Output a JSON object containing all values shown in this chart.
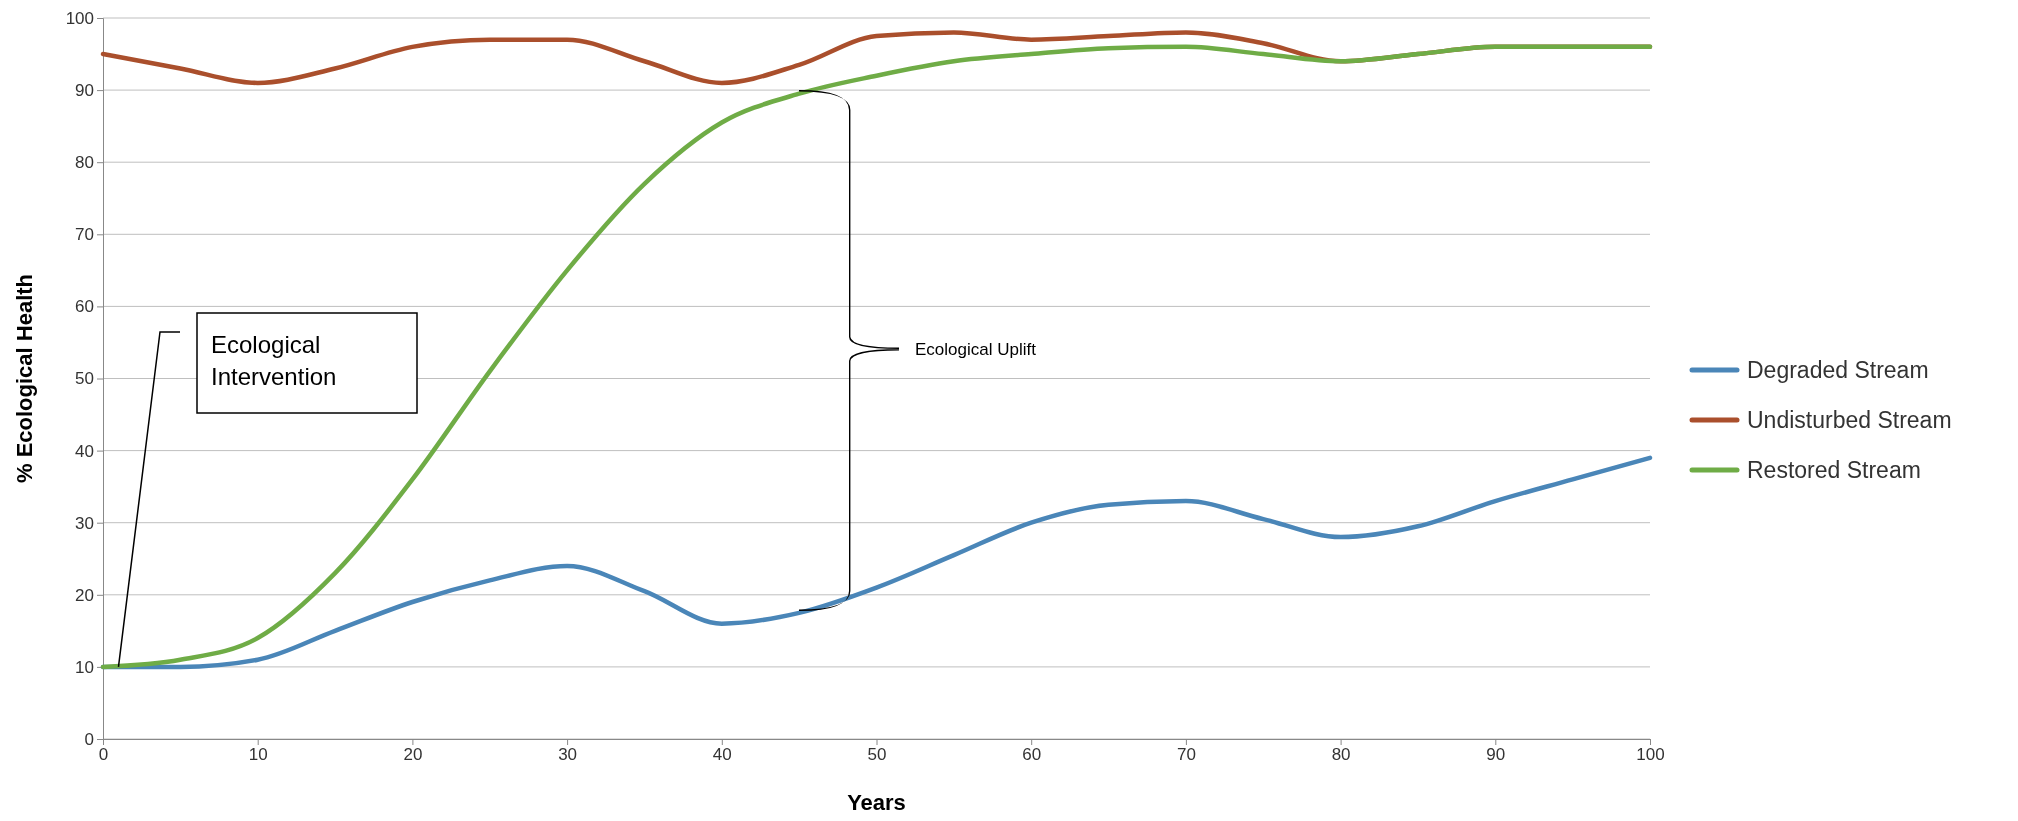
{
  "chart_data": {
    "type": "line",
    "xlabel": "Years",
    "ylabel": "% Ecological Health",
    "x": [
      0,
      5,
      10,
      15,
      20,
      25,
      30,
      35,
      40,
      45,
      50,
      55,
      60,
      65,
      70,
      75,
      80,
      85,
      90,
      95,
      100
    ],
    "series": [
      {
        "name": "Degraded Stream",
        "color": "#4a86b8",
        "values": [
          10,
          10,
          11,
          15,
          19,
          22,
          24,
          20.5,
          16,
          17.5,
          21,
          25.5,
          30,
          32.5,
          33,
          30.5,
          28,
          29.5,
          33,
          36,
          39
        ]
      },
      {
        "name": "Undisturbed Stream",
        "color": "#aa4f2c",
        "values": [
          95,
          93,
          91,
          93,
          96,
          97,
          97,
          94,
          91,
          93.5,
          97.5,
          98,
          97,
          97.5,
          98,
          96.5,
          94,
          95,
          96,
          96,
          96
        ]
      },
      {
        "name": "Restored Stream",
        "color": "#6fac46",
        "values": [
          10,
          11,
          14,
          23,
          36,
          51,
          65,
          77,
          85.5,
          89.5,
          92,
          94,
          95,
          95.8,
          96,
          95,
          94,
          95,
          96,
          96,
          96
        ]
      }
    ],
    "xlim": [
      0,
      100
    ],
    "xticks": [
      0,
      10,
      20,
      30,
      40,
      50,
      60,
      70,
      80,
      90,
      100
    ],
    "ylim": [
      0,
      100
    ],
    "yticks": [
      0,
      10,
      20,
      30,
      40,
      50,
      60,
      70,
      80,
      90,
      100
    ],
    "grid": "y",
    "legend": "right",
    "marker": "none",
    "line_style": "solid",
    "annotations": [
      {
        "text": "Ecological Intervention",
        "x": 1,
        "y": 10
      },
      "Ecological Uplift"
    ]
  }
}
